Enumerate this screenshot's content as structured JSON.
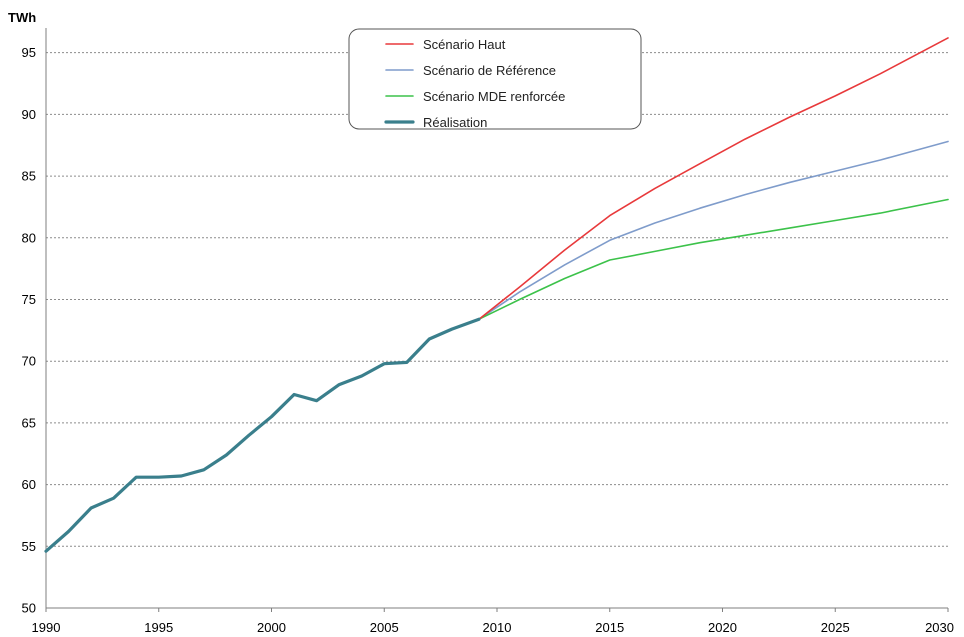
{
  "chart_data": {
    "type": "line",
    "ylabel": "TWh",
    "ylim": [
      50,
      97
    ],
    "xlim": [
      1990,
      2030
    ],
    "y_ticks": [
      50,
      55,
      60,
      65,
      70,
      75,
      80,
      85,
      90,
      95
    ],
    "x_ticks": [
      1990,
      1995,
      2000,
      2005,
      2010,
      2015,
      2020,
      2025,
      2030
    ],
    "grid": true,
    "legend_position": "top-center",
    "series": [
      {
        "name": "Scénario Haut",
        "color": "#e8393b",
        "width": 1.6,
        "points": [
          [
            2009.2,
            73.4
          ],
          [
            2011,
            76.0
          ],
          [
            2013,
            79.0
          ],
          [
            2015,
            81.8
          ],
          [
            2017,
            84.0
          ],
          [
            2019,
            86.0
          ],
          [
            2021,
            88.0
          ],
          [
            2023,
            89.8
          ],
          [
            2025,
            91.5
          ],
          [
            2027,
            93.3
          ],
          [
            2030,
            96.2
          ]
        ]
      },
      {
        "name": "Scénario de Référence",
        "color": "#7f9ccb",
        "width": 1.6,
        "points": [
          [
            2009.2,
            73.4
          ],
          [
            2011,
            75.6
          ],
          [
            2013,
            77.8
          ],
          [
            2015,
            79.8
          ],
          [
            2017,
            81.2
          ],
          [
            2019,
            82.4
          ],
          [
            2021,
            83.5
          ],
          [
            2023,
            84.5
          ],
          [
            2025,
            85.4
          ],
          [
            2027,
            86.3
          ],
          [
            2030,
            87.8
          ]
        ]
      },
      {
        "name": "Scénario MDE renforcée",
        "color": "#3cc24a",
        "width": 1.6,
        "points": [
          [
            2009.2,
            73.4
          ],
          [
            2011,
            75.0
          ],
          [
            2013,
            76.7
          ],
          [
            2015,
            78.2
          ],
          [
            2017,
            78.9
          ],
          [
            2019,
            79.6
          ],
          [
            2021,
            80.2
          ],
          [
            2023,
            80.8
          ],
          [
            2025,
            81.4
          ],
          [
            2027,
            82.0
          ],
          [
            2030,
            83.1
          ]
        ]
      },
      {
        "name": "Réalisation",
        "color": "#3a7f8c",
        "width": 3.2,
        "points": [
          [
            1990,
            54.6
          ],
          [
            1991,
            56.2
          ],
          [
            1992,
            58.1
          ],
          [
            1993,
            58.9
          ],
          [
            1994,
            60.6
          ],
          [
            1995,
            60.6
          ],
          [
            1996,
            60.7
          ],
          [
            1997,
            61.2
          ],
          [
            1998,
            62.4
          ],
          [
            1999,
            64.0
          ],
          [
            2000,
            65.5
          ],
          [
            2001,
            67.3
          ],
          [
            2002,
            66.8
          ],
          [
            2003,
            68.1
          ],
          [
            2004,
            68.8
          ],
          [
            2005,
            69.8
          ],
          [
            2006,
            69.9
          ],
          [
            2007,
            71.8
          ],
          [
            2008,
            72.6
          ],
          [
            2009.2,
            73.4
          ]
        ]
      }
    ]
  }
}
